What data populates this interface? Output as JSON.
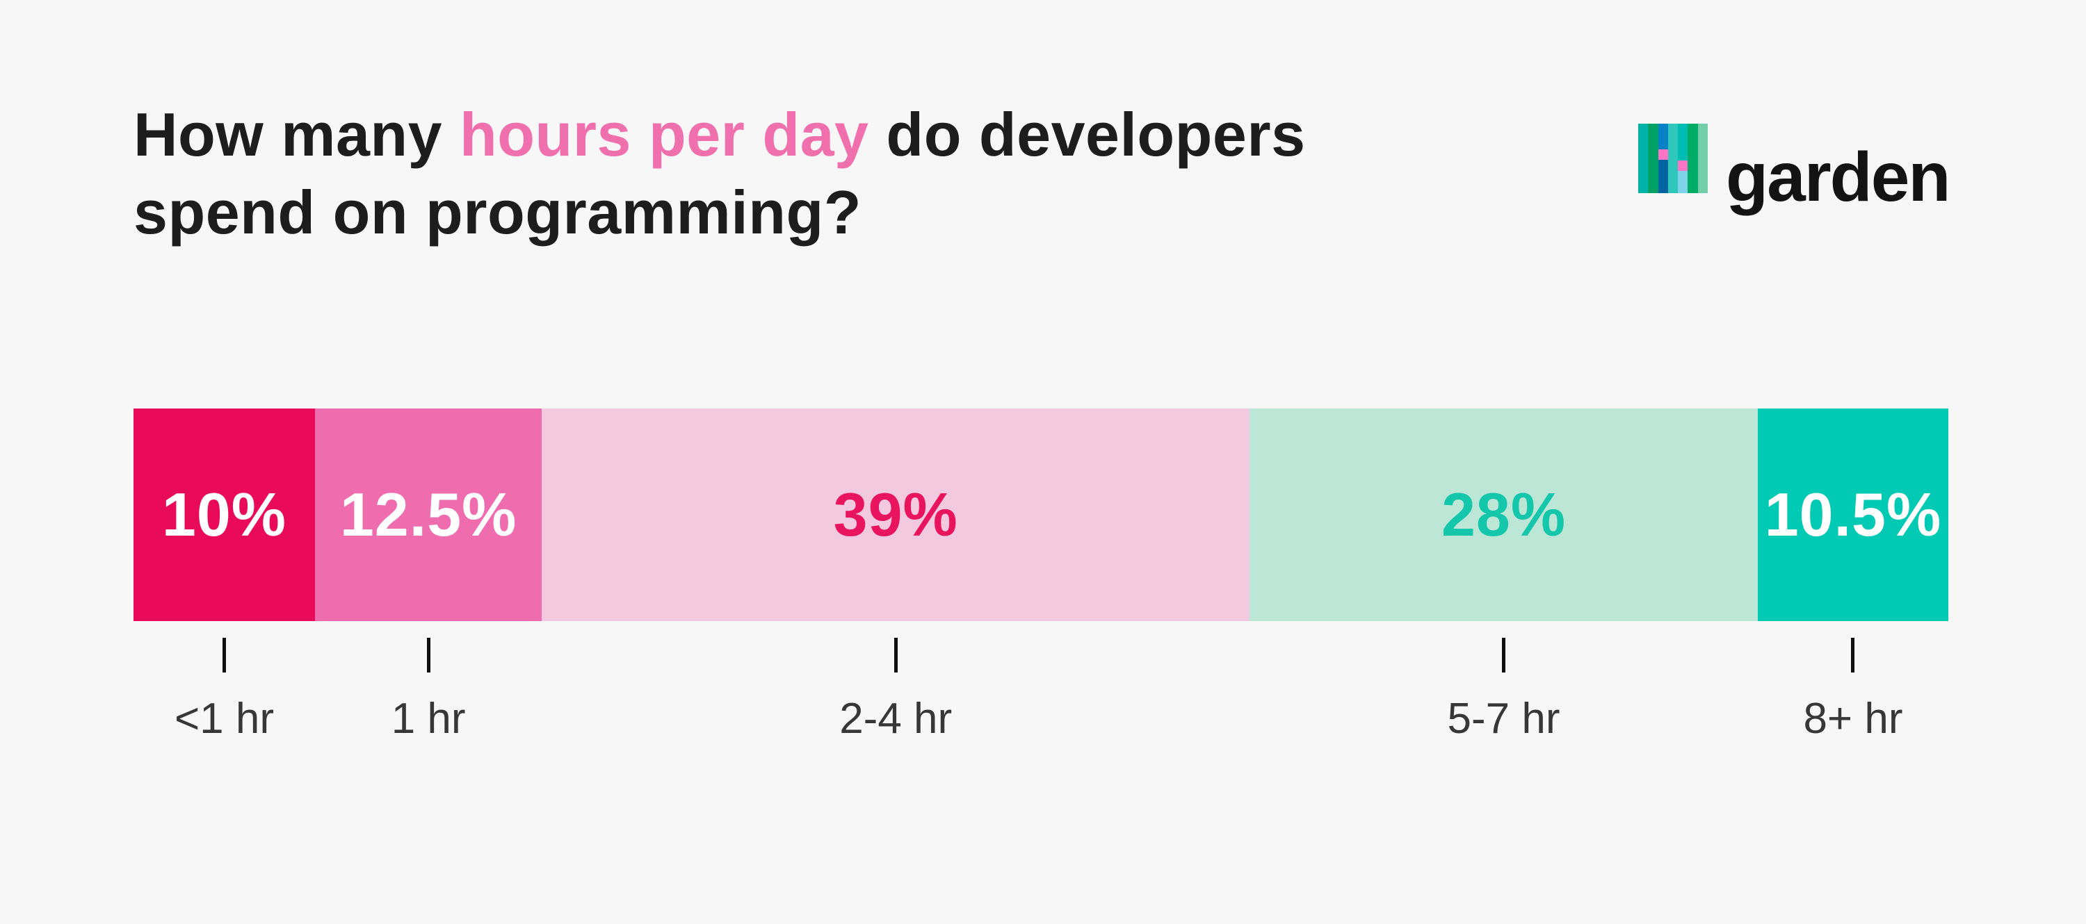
{
  "page": {
    "background_color": "#f7f7f8"
  },
  "title": {
    "line1_part1": "How many ",
    "line1_highlight": "hours per day",
    "line1_part3": " do developers",
    "line2": "spend on programming?",
    "text_color": "#1d1d1d",
    "highlight_color": "#f06fad"
  },
  "logo": {
    "wordmark": "garden",
    "wordmark_color": "#131313",
    "stripes": [
      {
        "color": "#00b2a8"
      },
      {
        "color": "#00a164"
      },
      {
        "segments": [
          {
            "color": "#0581c7",
            "h": 37
          },
          {
            "color": "#fb74c6",
            "h": 15
          },
          {
            "color": "#0063a2",
            "h": 48
          }
        ]
      },
      {
        "color": "#2fc6bc"
      },
      {
        "segments": [
          {
            "color": "#00bdb4",
            "h": 53
          },
          {
            "color": "#fb74c6",
            "h": 15
          },
          {
            "color": "#7ed3e8",
            "h": 32
          }
        ]
      },
      {
        "color": "#00ab67"
      },
      {
        "color": "#72cfa9"
      }
    ]
  },
  "chart_data": {
    "type": "bar",
    "subtype": "horizontal-stacked-percentage",
    "title": "How many hours per day do developers spend on programming?",
    "categories": [
      "<1 hr",
      "1 hr",
      "2-4 hr",
      "5-7 hr",
      "8+ hr"
    ],
    "values": [
      10,
      12.5,
      39,
      28,
      10.5
    ],
    "value_labels": [
      "10%",
      "12.5%",
      "39%",
      "28%",
      "10.5%"
    ],
    "segment_colors": [
      "#e90a58",
      "#ef6dae",
      "#f3c9e0",
      "#bce7d6",
      "#00c9b4"
    ],
    "value_label_colors": [
      "#ffffff",
      "#ffffff",
      "#e9145e",
      "#14c7ab",
      "#ffffff"
    ],
    "axis_label_color": "#373737",
    "tick_color": "#101010",
    "xlim": [
      0,
      100
    ],
    "legend": "none",
    "grid": false
  }
}
